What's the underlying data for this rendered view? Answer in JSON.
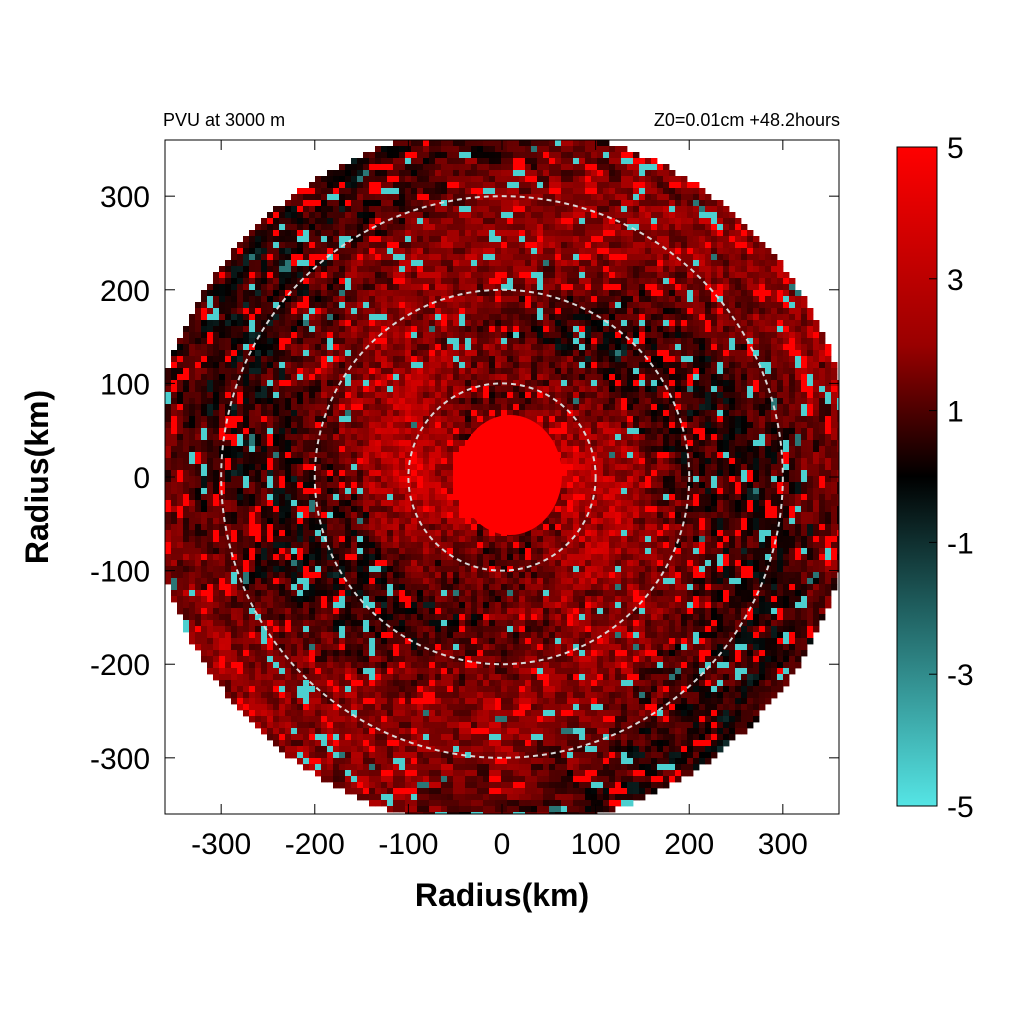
{
  "chart_data": {
    "type": "heatmap",
    "title_left": "PVU at  3000 m",
    "title_right": "Z0=0.01cm  +48.2hours",
    "xlabel": "Radius(km)",
    "ylabel": "Radius(km)",
    "xlim": [
      -360,
      360
    ],
    "ylim": [
      -360,
      360
    ],
    "x_ticks": [
      -300,
      -200,
      -100,
      0,
      100,
      200,
      300
    ],
    "y_ticks": [
      -300,
      -200,
      -100,
      0,
      100,
      200,
      300
    ],
    "x_tick_labels": [
      "-300",
      "-200",
      "-100",
      "0",
      "100",
      "200",
      "300"
    ],
    "y_tick_labels": [
      "-300",
      "-200",
      "-100",
      "0",
      "100",
      "200",
      "300"
    ],
    "domain_radius_km": 375,
    "reference_circles_km": [
      100,
      200,
      300
    ],
    "color_range": [
      -5,
      5
    ],
    "colorbar_ticks": [
      5,
      3,
      1,
      -1,
      -3,
      -5
    ],
    "colorbar_tick_labels": [
      "5",
      "3",
      "1",
      "-1",
      "-3",
      "-5"
    ],
    "colormap": [
      "#55e5e5",
      "#000000",
      "#ff0000"
    ],
    "field_description": "Potential vorticity: saturated positive core (>5 PVU) within ~60 km of center, surrounded by spiral bands of mixed positive (dark-red/red) and negative (cyan) values out to 375 km"
  }
}
